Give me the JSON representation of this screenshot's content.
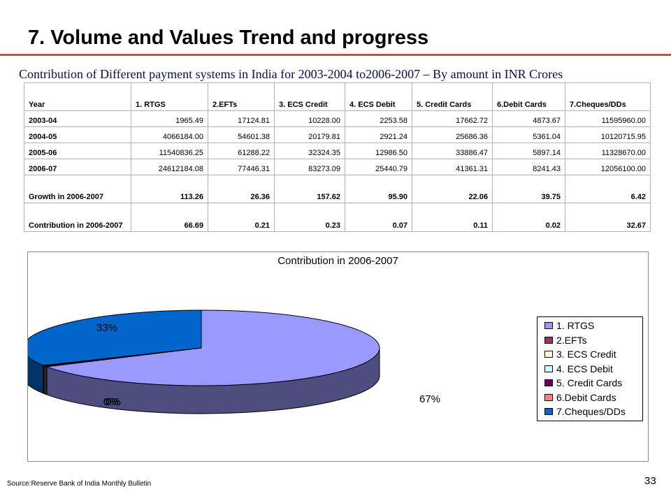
{
  "title": "7. Volume and Values Trend and progress",
  "subtitle": "Contribution of Different payment systems in India for 2003-2004 to2006-2007 – By amount in INR Crores",
  "table": {
    "headers": [
      "Year",
      "1. RTGS",
      "2.EFTs",
      "3. ECS Credit",
      "4. ECS Debit",
      "5. Credit Cards",
      "6.Debit Cards",
      "7.Cheques/DDs"
    ],
    "rows": [
      [
        "2003-04",
        "1965.49",
        "17124.81",
        "10228.00",
        "2253.58",
        "17662.72",
        "4873.67",
        "11595960.00"
      ],
      [
        "2004-05",
        "4066184.00",
        "54601.38",
        "20179.81",
        "2921.24",
        "25686.36",
        "5361.04",
        "10120715.95"
      ],
      [
        "2005-06",
        "11540836.25",
        "61288.22",
        "32324.35",
        "12986.50",
        "33886.47",
        "5897.14",
        "11328670.00"
      ],
      [
        "2006-07",
        "24612184.08",
        "77446.31",
        "83273.09",
        "25440.79",
        "41361.31",
        "8241.43",
        "12056100.00"
      ]
    ],
    "growth": [
      "Growth  in 2006-2007",
      "113.26",
      "26.36",
      "157.62",
      "95.90",
      "22.06",
      "39.75",
      "6.42"
    ],
    "contribution": [
      "Contribution  in 2006-2007",
      "66.69",
      "0.21",
      "0.23",
      "0.07",
      "0.11",
      "0.02",
      "32.67"
    ]
  },
  "chart_data": {
    "type": "pie",
    "title": "Contribution in 2006-2007",
    "categories": [
      "1. RTGS",
      "2.EFTs",
      "3. ECS Credit",
      "4. ECS Debit",
      "5. Credit Cards",
      "6.Debit Cards",
      "7.Cheques/DDs"
    ],
    "values": [
      66.69,
      0.21,
      0.23,
      0.07,
      0.11,
      0.02,
      32.67
    ],
    "labels": [
      "67%",
      "0%",
      "0%",
      "0%",
      "0%",
      "0%",
      "33%"
    ],
    "colors": [
      "#9999ff",
      "#993366",
      "#ffffcc",
      "#ccffff",
      "#660066",
      "#ff8080",
      "#0066cc"
    ],
    "legend_position": "right"
  },
  "footer": {
    "source": "Source:Reserve Bank of India Monthly Bulletin",
    "page_number": "33"
  }
}
